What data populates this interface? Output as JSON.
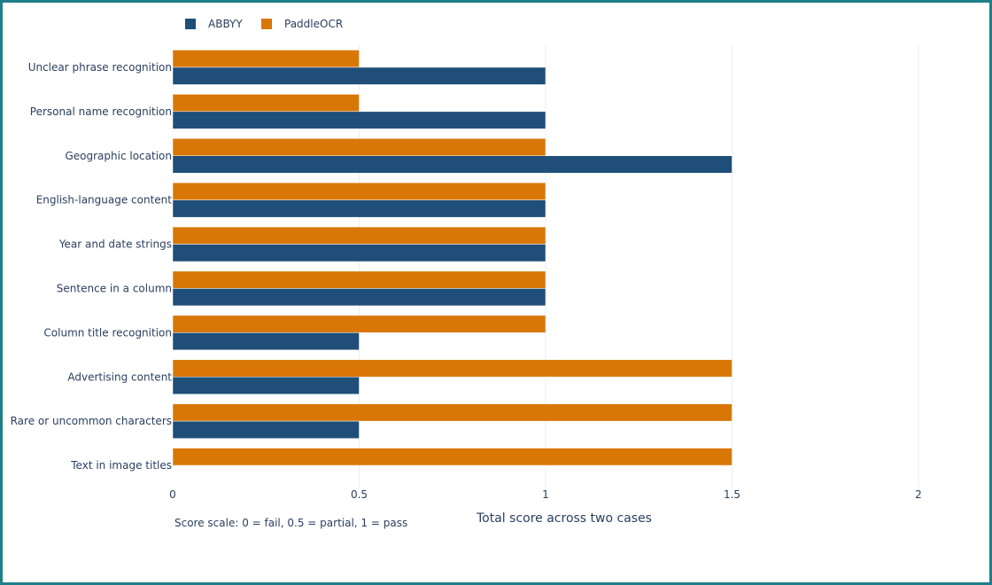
{
  "chart_data": {
    "type": "bar",
    "orientation": "horizontal",
    "categories": [
      "Unclear phrase recognition",
      "Personal name recognition",
      "Geographic location",
      "English-language content",
      "Year and date strings",
      "Sentence in a column",
      "Column title recognition",
      "Advertising content",
      "Rare or uncommon characters",
      "Text in image titles"
    ],
    "series": [
      {
        "name": "ABBYY",
        "color": "#1f4e79",
        "values": [
          1,
          1,
          1.5,
          1,
          1,
          1,
          0.5,
          0.5,
          0.5,
          0
        ]
      },
      {
        "name": "PaddleOCR",
        "color": "#d97706",
        "values": [
          0.5,
          0.5,
          1,
          1,
          1,
          1,
          1,
          1.5,
          1.5,
          1.5
        ]
      }
    ],
    "xlabel": "Total score across two cases",
    "ylabel": "",
    "xlim": [
      0,
      2
    ],
    "xticks": [
      0,
      0.5,
      1,
      1.5,
      2
    ],
    "xtick_labels": [
      "0",
      "0.5",
      "1",
      "1.5",
      "2"
    ],
    "annotation": "Score scale: 0 = fail, 0.5 = partial, 1 = pass",
    "grid": true,
    "legend_position": "top-left"
  }
}
